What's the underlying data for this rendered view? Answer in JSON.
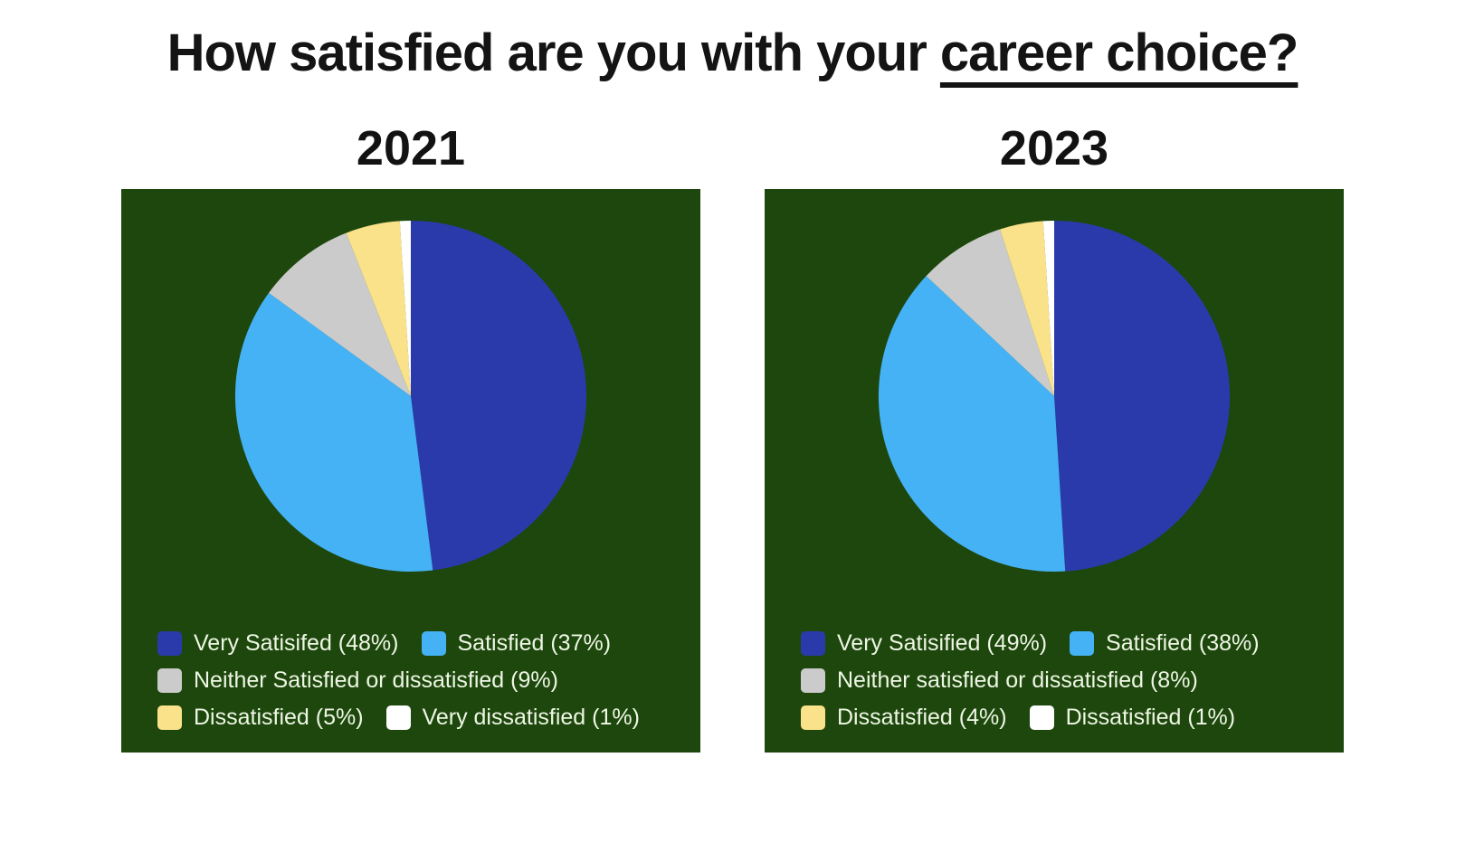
{
  "page": {
    "background": "#ffffff"
  },
  "title": {
    "prefix": "How satisfied are you with your ",
    "underlined": "career choice?"
  },
  "chart_data": [
    {
      "type": "pie",
      "title": "2021",
      "background": "#1d470d",
      "legend_position": "bottom-left",
      "legend_text_color": "#eef6e4",
      "slices": [
        {
          "label": "Very Satisifed",
          "pct": 48,
          "color": "#2b3aaa"
        },
        {
          "label": "Satisfied",
          "pct": 37,
          "color": "#45b2f5"
        },
        {
          "label": "Neither Satisfied or dissatisfied",
          "pct": 9,
          "color": "#cbcbcb"
        },
        {
          "label": "Dissatisfied",
          "pct": 5,
          "color": "#fae28a"
        },
        {
          "label": "Very dissatisfied",
          "pct": 1,
          "color": "#ffffff"
        }
      ]
    },
    {
      "type": "pie",
      "title": "2023",
      "background": "#1d470d",
      "legend_position": "bottom-left",
      "legend_text_color": "#eef6e4",
      "slices": [
        {
          "label": "Very Satisified",
          "pct": 49,
          "color": "#2b3aaa"
        },
        {
          "label": "Satisfied",
          "pct": 38,
          "color": "#45b2f5"
        },
        {
          "label": "Neither satisfied or dissatisfied",
          "pct": 8,
          "color": "#cbcbcb"
        },
        {
          "label": "Dissatisfied",
          "pct": 4,
          "color": "#fae28a"
        },
        {
          "label": "Dissatisfied",
          "pct": 1,
          "color": "#ffffff"
        }
      ]
    }
  ]
}
